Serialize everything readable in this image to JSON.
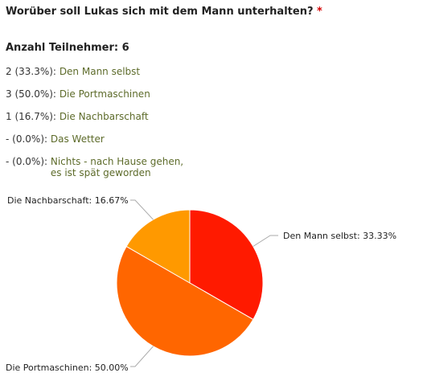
{
  "question": {
    "text": "Worüber soll Lukas sich mit dem Mann unterhalten?",
    "required_mark": "*"
  },
  "participants_text": "Anzahl Teilnehmer: 6",
  "answers": [
    {
      "count": "2 (33.3%):",
      "label": "Den Mann selbst"
    },
    {
      "count": "3 (50.0%):",
      "label": "Die Portmaschinen"
    },
    {
      "count": "1 (16.7%):",
      "label": "Die Nachbarschaft"
    },
    {
      "count": "- (0.0%):",
      "label": "Das Wetter"
    },
    {
      "count": "- (0.0%):",
      "label": "Nichts - nach Hause gehen,\nes ist spät geworden"
    }
  ],
  "chart_data": {
    "type": "pie",
    "slices": [
      {
        "name": "Den Mann selbst",
        "value": 33.33,
        "label": "Den Mann selbst: 33.33%",
        "color": "#ff1a00"
      },
      {
        "name": "Die Portmaschinen",
        "value": 50.0,
        "label": "Die Portmaschinen: 50.00%",
        "color": "#ff6600"
      },
      {
        "name": "Die Nachbarschaft",
        "value": 16.67,
        "label": "Die Nachbarschaft: 16.67%",
        "color": "#ff9900"
      }
    ]
  }
}
